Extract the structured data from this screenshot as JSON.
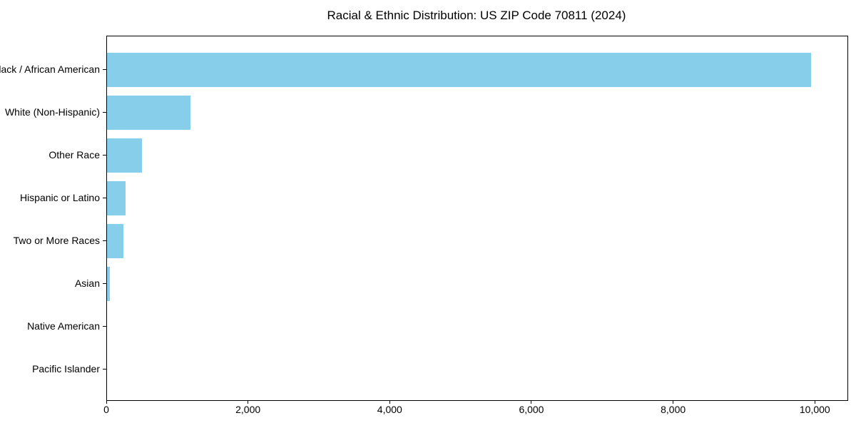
{
  "chart_data": {
    "type": "bar",
    "orientation": "horizontal",
    "title": "Racial & Ethnic Distribution: US ZIP Code 70811 (2024)",
    "categories": [
      "Black / African American",
      "White (Non-Hispanic)",
      "Other Race",
      "Hispanic or Latino",
      "Two or More Races",
      "Asian",
      "Native American",
      "Pacific Islander"
    ],
    "values": [
      9940,
      1180,
      490,
      260,
      235,
      37,
      0,
      0
    ],
    "xlabel": "",
    "ylabel": "",
    "xlim": [
      0,
      10450
    ],
    "xticks": [
      0,
      2000,
      4000,
      6000,
      8000,
      10000
    ],
    "xtick_labels": [
      "0",
      "2,000",
      "4,000",
      "6,000",
      "8,000",
      "10,000"
    ],
    "bar_color": "#87CEEB",
    "axis_color": "#000000",
    "grid": false,
    "legend": null
  }
}
